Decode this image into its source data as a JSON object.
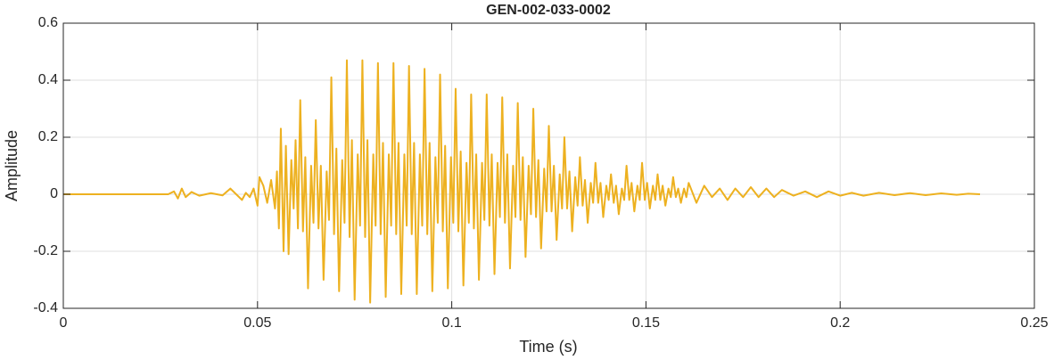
{
  "chart_data": {
    "type": "line",
    "title": "GEN-002-033-0002",
    "xlabel": "Time (s)",
    "ylabel": "Amplitude",
    "color": "#edb120",
    "grid": true,
    "xlim": [
      0,
      0.25
    ],
    "xticks": [
      0,
      0.05,
      0.1,
      0.15,
      0.2,
      0.25
    ],
    "ylim": [
      -0.4,
      0.6
    ],
    "yticks": [
      -0.4,
      -0.2,
      0,
      0.2,
      0.4,
      0.6
    ],
    "x": [
      0,
      0.027,
      0.0285,
      0.0295,
      0.0305,
      0.0315,
      0.033,
      0.035,
      0.038,
      0.041,
      0.043,
      0.0445,
      0.046,
      0.047,
      0.048,
      0.049,
      0.05,
      0.0505,
      0.0515,
      0.0525,
      0.0535,
      0.0545,
      0.055,
      0.0555,
      0.056,
      0.0567,
      0.0573,
      0.058,
      0.0587,
      0.0593,
      0.0598,
      0.0604,
      0.061,
      0.0617,
      0.0623,
      0.063,
      0.0638,
      0.0644,
      0.065,
      0.0657,
      0.0663,
      0.067,
      0.0678,
      0.0684,
      0.069,
      0.0697,
      0.0703,
      0.071,
      0.0718,
      0.0724,
      0.073,
      0.0737,
      0.0743,
      0.075,
      0.0758,
      0.0764,
      0.077,
      0.0777,
      0.0783,
      0.079,
      0.0798,
      0.0804,
      0.081,
      0.0817,
      0.0823,
      0.083,
      0.0838,
      0.0844,
      0.085,
      0.0857,
      0.0863,
      0.087,
      0.0878,
      0.0884,
      0.089,
      0.0897,
      0.0903,
      0.091,
      0.0918,
      0.0924,
      0.093,
      0.0937,
      0.0943,
      0.095,
      0.0958,
      0.0964,
      0.097,
      0.0977,
      0.0983,
      0.099,
      0.0998,
      0.1004,
      0.101,
      0.1017,
      0.1023,
      0.103,
      0.1038,
      0.1044,
      0.105,
      0.1057,
      0.1063,
      0.107,
      0.1078,
      0.1084,
      0.109,
      0.1097,
      0.1103,
      0.111,
      0.1118,
      0.1124,
      0.113,
      0.1137,
      0.1143,
      0.115,
      0.1158,
      0.1164,
      0.117,
      0.1177,
      0.1183,
      0.119,
      0.1198,
      0.1204,
      0.121,
      0.1217,
      0.1223,
      0.123,
      0.1238,
      0.1244,
      0.125,
      0.1257,
      0.1263,
      0.127,
      0.1278,
      0.1284,
      0.129,
      0.1297,
      0.1303,
      0.131,
      0.1318,
      0.1324,
      0.133,
      0.1337,
      0.1343,
      0.135,
      0.1358,
      0.1364,
      0.137,
      0.1377,
      0.1383,
      0.139,
      0.1398,
      0.1404,
      0.141,
      0.1417,
      0.1423,
      0.143,
      0.1438,
      0.1444,
      0.145,
      0.1457,
      0.1463,
      0.147,
      0.1478,
      0.1484,
      0.149,
      0.1497,
      0.1503,
      0.151,
      0.1518,
      0.1524,
      0.153,
      0.1537,
      0.1543,
      0.155,
      0.1558,
      0.1564,
      0.157,
      0.1577,
      0.1583,
      0.159,
      0.1598,
      0.1604,
      0.161,
      0.163,
      0.165,
      0.167,
      0.169,
      0.171,
      0.173,
      0.175,
      0.177,
      0.179,
      0.181,
      0.183,
      0.185,
      0.188,
      0.191,
      0.194,
      0.197,
      0.2,
      0.203,
      0.206,
      0.21,
      0.214,
      0.218,
      0.222,
      0.226,
      0.23,
      0.233,
      0.236
    ],
    "values": [
      0,
      0,
      0.01,
      -0.015,
      0.02,
      -0.01,
      0.008,
      -0.005,
      0.004,
      -0.004,
      0.02,
      0,
      -0.02,
      0.005,
      -0.01,
      0.02,
      -0.04,
      0.06,
      0.03,
      -0.03,
      0.05,
      -0.05,
      0.08,
      -0.12,
      0.23,
      -0.2,
      0.17,
      -0.21,
      0.12,
      -0.05,
      0.19,
      -0.12,
      0.33,
      -0.13,
      0.13,
      -0.33,
      0.1,
      -0.1,
      0.26,
      -0.12,
      0.1,
      -0.3,
      0.08,
      -0.09,
      0.41,
      -0.14,
      0.16,
      -0.34,
      0.12,
      -0.1,
      0.47,
      -0.15,
      0.19,
      -0.37,
      0.14,
      -0.11,
      0.47,
      -0.15,
      0.19,
      -0.38,
      0.14,
      -0.11,
      0.46,
      -0.14,
      0.18,
      -0.36,
      0.14,
      -0.11,
      0.46,
      -0.14,
      0.18,
      -0.35,
      0.14,
      -0.11,
      0.45,
      -0.14,
      0.18,
      -0.35,
      0.14,
      -0.11,
      0.44,
      -0.14,
      0.18,
      -0.34,
      0.13,
      -0.1,
      0.42,
      -0.13,
      0.17,
      -0.33,
      0.13,
      -0.1,
      0.37,
      -0.13,
      0.15,
      -0.32,
      0.11,
      -0.1,
      0.35,
      -0.12,
      0.14,
      -0.3,
      0.11,
      -0.09,
      0.35,
      -0.11,
      0.14,
      -0.28,
      0.11,
      -0.08,
      0.34,
      -0.1,
      0.14,
      -0.26,
      0.1,
      -0.08,
      0.32,
      -0.09,
      0.13,
      -0.22,
      0.1,
      -0.07,
      0.3,
      -0.08,
      0.12,
      -0.19,
      0.09,
      -0.06,
      0.24,
      -0.06,
      0.1,
      -0.16,
      0.07,
      -0.05,
      0.2,
      -0.05,
      0.08,
      -0.13,
      0.06,
      -0.04,
      0.13,
      -0.04,
      0.05,
      -0.1,
      0.04,
      -0.03,
      0.11,
      -0.03,
      0.04,
      -0.08,
      0.03,
      -0.02,
      0.07,
      -0.03,
      0.03,
      -0.07,
      0.02,
      -0.02,
      0.1,
      -0.02,
      0.04,
      -0.06,
      0.03,
      -0.02,
      0.11,
      -0.02,
      0.04,
      -0.05,
      0.03,
      -0.02,
      0.07,
      -0.02,
      0.03,
      -0.04,
      0.02,
      -0.01,
      0.06,
      -0.01,
      0.02,
      -0.03,
      0.02,
      -0.01,
      0.04,
      -0.03,
      0.03,
      -0.01,
      0.02,
      -0.02,
      0.02,
      -0.01,
      0.025,
      -0.01,
      0.02,
      -0.01,
      0.015,
      -0.005,
      0.01,
      -0.01,
      0.01,
      -0.005,
      0.005,
      -0.005,
      0.005,
      -0.003,
      0.004,
      -0.003,
      0.003,
      -0.002,
      0.002,
      0
    ]
  }
}
